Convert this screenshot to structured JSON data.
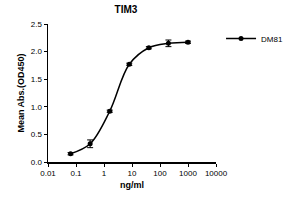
{
  "chart_data": {
    "type": "line",
    "title": "TIM3",
    "x_label": "ng/ml",
    "y_label": "Mean Abs.(OD450)",
    "log": "x",
    "x": [
      0.064,
      0.32,
      1.6,
      8,
      40,
      200,
      1000
    ],
    "series": [
      {
        "name": "DM81",
        "color": "#000000",
        "marker": "circle",
        "line_style": "solid",
        "values": [
          0.15,
          0.33,
          0.92,
          1.77,
          2.07,
          2.15,
          2.17
        ],
        "errors": [
          0.02,
          0.07,
          0.02,
          0.02,
          0.02,
          0.06,
          0.02
        ]
      }
    ],
    "xlim": [
      0.01,
      10000
    ],
    "xticks": [
      0.01,
      0.1,
      1,
      10,
      100,
      1000,
      10000
    ],
    "ylim": [
      0,
      2.5
    ],
    "yticks": [
      {
        "value": 0,
        "label": "0.0"
      },
      {
        "value": 0.5,
        "label": "0.5"
      },
      {
        "value": 1,
        "label": "1.0"
      },
      {
        "value": 1.5,
        "label": "1.5"
      },
      {
        "value": 2,
        "label": "2.0"
      },
      {
        "value": 2.5,
        "label": "2.5"
      }
    ],
    "grid": false,
    "legend": "right"
  }
}
